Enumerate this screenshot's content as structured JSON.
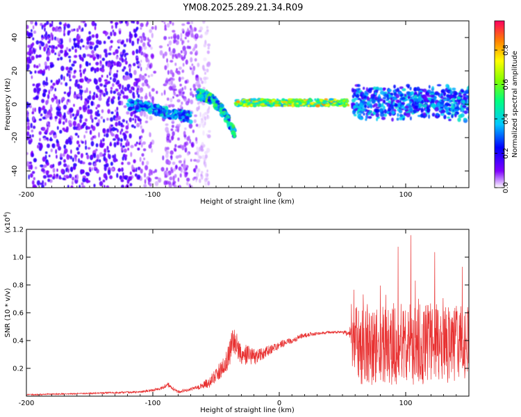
{
  "title": "YM08.2025.289.21.34.R09",
  "chart_data": [
    {
      "type": "heatmap",
      "name": "spectrogram",
      "xlabel": "Height of straight line (km)",
      "ylabel": "Frequency (Hz)",
      "xlim": [
        -200,
        150
      ],
      "ylim": [
        -50,
        50
      ],
      "xticks": [
        -200,
        -100,
        0,
        100
      ],
      "yticks": [
        -40,
        -20,
        0,
        20,
        40
      ],
      "colorbar": {
        "label": "Normalized spectral amplitude",
        "range": [
          0,
          0.97
        ],
        "ticks": [
          "0.0",
          "0.2",
          "0.4",
          "0.6",
          "0.8"
        ],
        "tick_values": [
          0,
          0.2,
          0.4,
          0.6,
          0.8
        ]
      },
      "features": [
        {
          "desc": "broadband noise",
          "x_range": [
            -200,
            -65
          ],
          "amplitude": 0.15
        },
        {
          "desc": "signal trace",
          "x": [
            -120,
            -110,
            -100,
            -90,
            -80,
            -70
          ],
          "freq": [
            0,
            -1,
            -3,
            -5,
            -6,
            -8
          ],
          "amplitude": 0.35
        },
        {
          "desc": "signal trace",
          "x": [
            -65,
            -58,
            -52,
            -46,
            -40,
            -35
          ],
          "freq": [
            6,
            5,
            2,
            -3,
            -10,
            -18
          ],
          "amplitude": 0.45
        },
        {
          "desc": "carrier line",
          "x_range": [
            -35,
            55
          ],
          "freq": 1,
          "amplitude": 0.8
        },
        {
          "desc": "broadened carrier",
          "x_range": [
            58,
            150
          ],
          "freq": 1,
          "freq_spread": 8,
          "amplitude": 0.3
        }
      ]
    },
    {
      "type": "line",
      "name": "snr",
      "xlabel": "Height of straight line (km)",
      "ylabel": "SNR (10 * v/v)",
      "y_multiplier": "(x10",
      "y_exponent": "4",
      "multiplier_close": ")",
      "xlim": [
        -200,
        150
      ],
      "ylim": [
        0,
        1.2
      ],
      "xticks": [
        -200,
        -100,
        0,
        100
      ],
      "yticks": [
        "0.2",
        "0.4",
        "0.6",
        "0.8",
        "1.0",
        "1.2"
      ],
      "ytick_values": [
        0.2,
        0.4,
        0.6,
        0.8,
        1.0,
        1.2
      ],
      "color": "#e83030",
      "x": [
        -200,
        -150,
        -110,
        -95,
        -88,
        -85,
        -80,
        -65,
        -55,
        -45,
        -40,
        -37,
        -34,
        -30,
        -25,
        -20,
        -15,
        -10,
        -5,
        0,
        10,
        20,
        30,
        40,
        50,
        55,
        57,
        60,
        80,
        100,
        120,
        140,
        150
      ],
      "y": [
        0.01,
        0.02,
        0.03,
        0.05,
        0.08,
        0.06,
        0.03,
        0.06,
        0.1,
        0.2,
        0.28,
        0.4,
        0.38,
        0.28,
        0.3,
        0.28,
        0.3,
        0.32,
        0.34,
        0.37,
        0.4,
        0.44,
        0.45,
        0.46,
        0.46,
        0.45,
        0.4,
        0.38,
        0.38,
        0.38,
        0.38,
        0.38,
        0.38
      ],
      "noise": [
        0.005,
        0.005,
        0.008,
        0.01,
        0.02,
        0.015,
        0.01,
        0.015,
        0.04,
        0.07,
        0.09,
        0.1,
        0.09,
        0.09,
        0.08,
        0.06,
        0.05,
        0.04,
        0.03,
        0.03,
        0.02,
        0.02,
        0.01,
        0.01,
        0.01,
        0.03,
        0.15,
        0.3,
        0.3,
        0.3,
        0.3,
        0.28,
        0.28
      ]
    }
  ]
}
